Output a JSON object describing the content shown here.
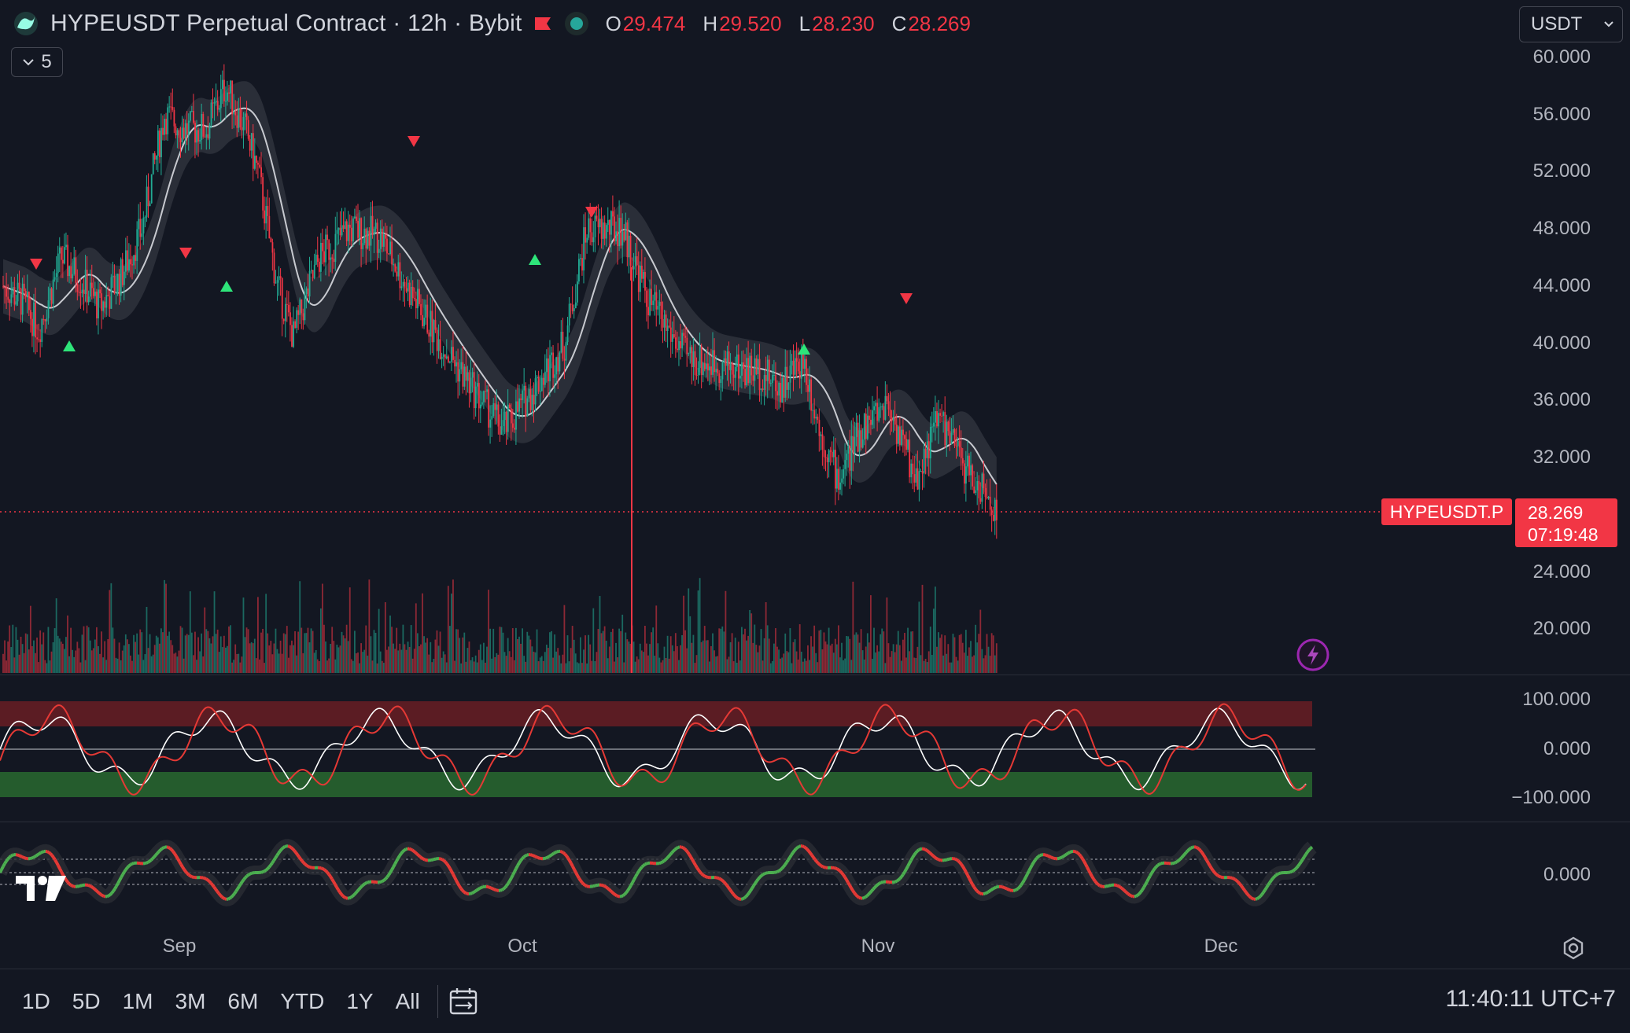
{
  "header": {
    "title": "HYPEUSDT Perpetual Contract · 12h · Bybit",
    "ohlc": [
      {
        "k": "O",
        "v": "29.474"
      },
      {
        "k": "H",
        "v": "29.520"
      },
      {
        "k": "L",
        "v": "28.230"
      },
      {
        "k": "C",
        "v": "28.269"
      }
    ],
    "indicator_count": "5",
    "currency": "USDT"
  },
  "price_axis": [
    "60.000",
    "56.000",
    "52.000",
    "48.000",
    "44.000",
    "40.000",
    "36.000",
    "32.000",
    "24.000",
    "20.000"
  ],
  "osc1_axis": [
    "100.000",
    "0.000",
    "−100.000"
  ],
  "osc2_axis": [
    "0.000"
  ],
  "time_axis": [
    "Sep",
    "Oct",
    "Nov",
    "Dec"
  ],
  "last_price": {
    "symbol": "HYPEUSDT.P",
    "price": "28.269",
    "countdown": "07:19:48"
  },
  "toolbar": {
    "timeframes": [
      "1D",
      "5D",
      "1M",
      "3M",
      "6M",
      "YTD",
      "1Y",
      "All"
    ],
    "clock": "11:40:11 UTC+7"
  },
  "colors": {
    "up": "#22ab94",
    "down": "#f23645",
    "background": "#131722",
    "text": "#d1d4dc"
  },
  "icons": [
    "tradingview-logo-icon",
    "market-closed-flag-icon",
    "live-status-icon",
    "chevron-down-icon",
    "lightning-icon",
    "settings-icon",
    "calendar-range-icon"
  ]
}
